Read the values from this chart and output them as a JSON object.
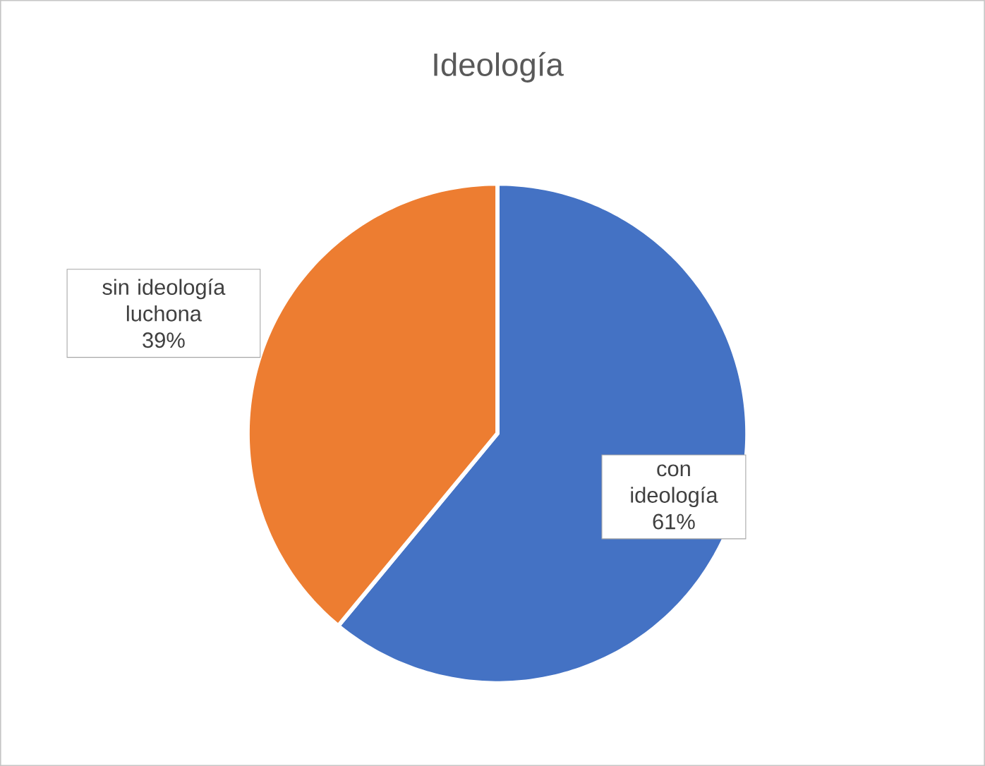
{
  "chart_data": {
    "type": "pie",
    "title": "Ideología",
    "categories": [
      "con ideología",
      "sin ideología luchona"
    ],
    "values": [
      61,
      39
    ],
    "colors": [
      "#4472c4",
      "#ed7d31"
    ],
    "value_labels": [
      "61%",
      "39%"
    ]
  }
}
